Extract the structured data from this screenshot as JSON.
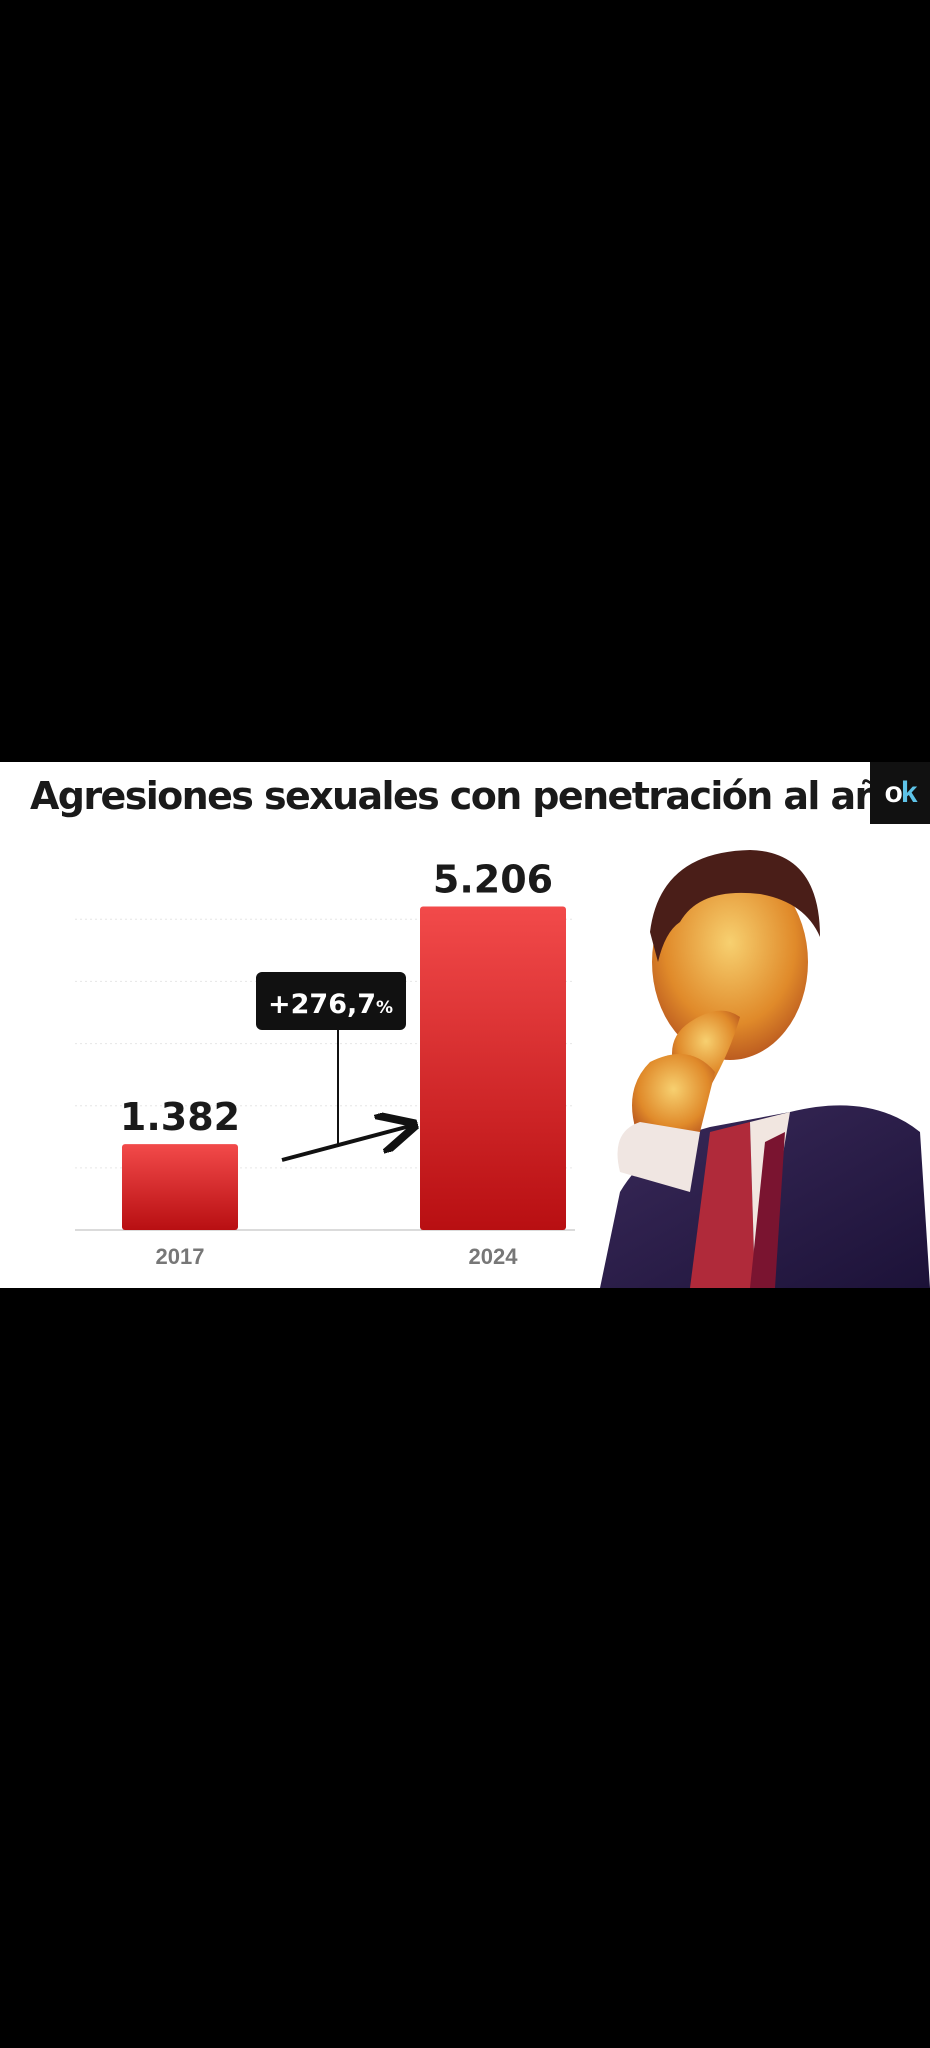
{
  "title": "Agresiones sexuales con penetración al año",
  "logo": {
    "text_o": "o",
    "text_k": "k"
  },
  "colors": {
    "bar_top": "#f24a4a",
    "bar_bottom": "#b80f12",
    "callout_bg": "#111111",
    "text": "#1a1a1a",
    "tick": "#777777"
  },
  "chart_data": {
    "type": "bar",
    "categories": [
      "2017",
      "2024"
    ],
    "values": [
      1382,
      5206
    ],
    "value_labels": [
      "1.382",
      "5.206"
    ],
    "title": "Agresiones sexuales con penetración al año",
    "xlabel": "",
    "ylabel": "",
    "ylim": [
      0,
      5600
    ],
    "grid": true,
    "annotations": [
      {
        "text": "+276,7",
        "suffix": "%"
      }
    ]
  }
}
